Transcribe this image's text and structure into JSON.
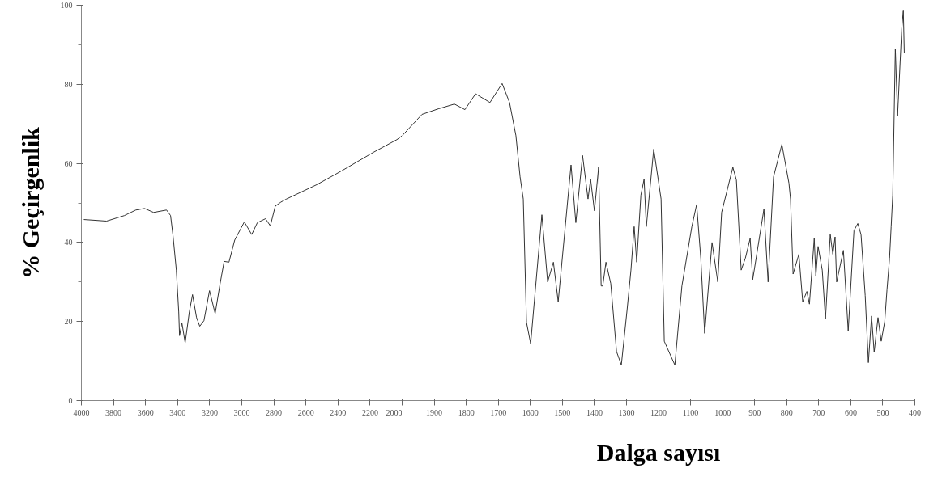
{
  "chart_data": [
    {
      "type": "line",
      "ylabel": "% Geçirgenlik",
      "xlim": [
        4000,
        2000
      ],
      "ylim": [
        0,
        100
      ],
      "xticks": [
        4000,
        3800,
        3600,
        3400,
        3200,
        3000,
        2800,
        2600,
        2400,
        2200,
        2000
      ],
      "yticks": [
        0,
        20,
        40,
        60,
        80,
        100
      ],
      "marker": "none",
      "line_style": "solid",
      "series": [
        {
          "color": "#333333",
          "x": [
            3985,
            3843,
            3732,
            3661,
            3606,
            3550,
            3469,
            3444,
            3429,
            3408,
            3393,
            3388,
            3373,
            3353,
            3327,
            3307,
            3282,
            3262,
            3236,
            3201,
            3166,
            3135,
            3110,
            3080,
            3044,
            2984,
            2938,
            2903,
            2852,
            2822,
            2791,
            2756,
            2721,
            2533,
            2382,
            2179,
            2033,
            2000
          ],
          "values": [
            45.8,
            45.4,
            46.8,
            48.2,
            48.6,
            47.6,
            48.2,
            46.8,
            41.8,
            33,
            22.4,
            16.4,
            19.6,
            14.6,
            22.4,
            26.8,
            21,
            18.8,
            20.2,
            27.8,
            22,
            29.6,
            35.2,
            35,
            40.6,
            45.2,
            42,
            45,
            46,
            44.2,
            49.2,
            50.2,
            51,
            54.6,
            58,
            62.8,
            66,
            67
          ]
        }
      ]
    },
    {
      "type": "line",
      "xlabel": "Dalga sayısı",
      "xlim": [
        2000,
        400
      ],
      "ylim": [
        0,
        100
      ],
      "xticks": [
        {
          "value": 2000,
          "label": null
        },
        1900,
        1800,
        1700,
        1600,
        1500,
        1400,
        1300,
        1200,
        1100,
        1000,
        900,
        800,
        700,
        600,
        500,
        400
      ],
      "tick_labels": "x",
      "marker": "none",
      "line_style": "solid",
      "series": [
        {
          "color": "#333333",
          "x": [
            2000,
            1938,
            1887,
            1837,
            1804,
            1771,
            1726,
            1688,
            1665,
            1645,
            1632,
            1622,
            1612,
            1599,
            1564,
            1546,
            1528,
            1513,
            1473,
            1458,
            1437,
            1420,
            1412,
            1400,
            1387,
            1379,
            1374,
            1364,
            1349,
            1331,
            1316,
            1298,
            1286,
            1276,
            1268,
            1255,
            1245,
            1238,
            1215,
            1192,
            1182,
            1149,
            1127,
            1096,
            1081,
            1068,
            1056,
            1033,
            1015,
            1003,
            968,
            957,
            942,
            929,
            914,
            906,
            871,
            858,
            841,
            815,
            793,
            788,
            780,
            762,
            750,
            737,
            729,
            714,
            709,
            702,
            689,
            679,
            664,
            656,
            649,
            644,
            623,
            608,
            590,
            578,
            568,
            555,
            545,
            535,
            527,
            515,
            505,
            494,
            487,
            479,
            474,
            469,
            461,
            454,
            441,
            436,
            433
          ],
          "values": [
            67,
            72.4,
            73.8,
            75,
            73.6,
            77.6,
            75.4,
            80.2,
            75.4,
            67,
            56.6,
            51,
            19.8,
            14.4,
            47,
            30,
            35,
            25,
            59.6,
            45,
            62,
            51,
            56,
            48,
            59,
            29,
            29,
            35,
            29.6,
            12.4,
            9,
            23,
            33,
            44,
            35,
            52,
            56,
            44,
            63.6,
            51,
            15,
            9,
            29,
            44,
            49.6,
            36,
            17,
            40,
            30,
            47.6,
            59,
            55.8,
            33,
            36,
            41,
            30.6,
            48.4,
            30,
            56.6,
            64.8,
            55,
            51,
            32,
            37,
            25,
            27.6,
            24.4,
            41,
            31.4,
            39,
            33,
            20.6,
            42,
            37,
            41.4,
            30,
            38,
            17.6,
            43,
            44.8,
            42,
            26.6,
            9.6,
            21.4,
            12.2,
            21,
            15,
            20,
            28,
            36,
            44,
            52,
            89,
            72,
            94,
            98.8,
            88
          ]
        }
      ]
    }
  ]
}
